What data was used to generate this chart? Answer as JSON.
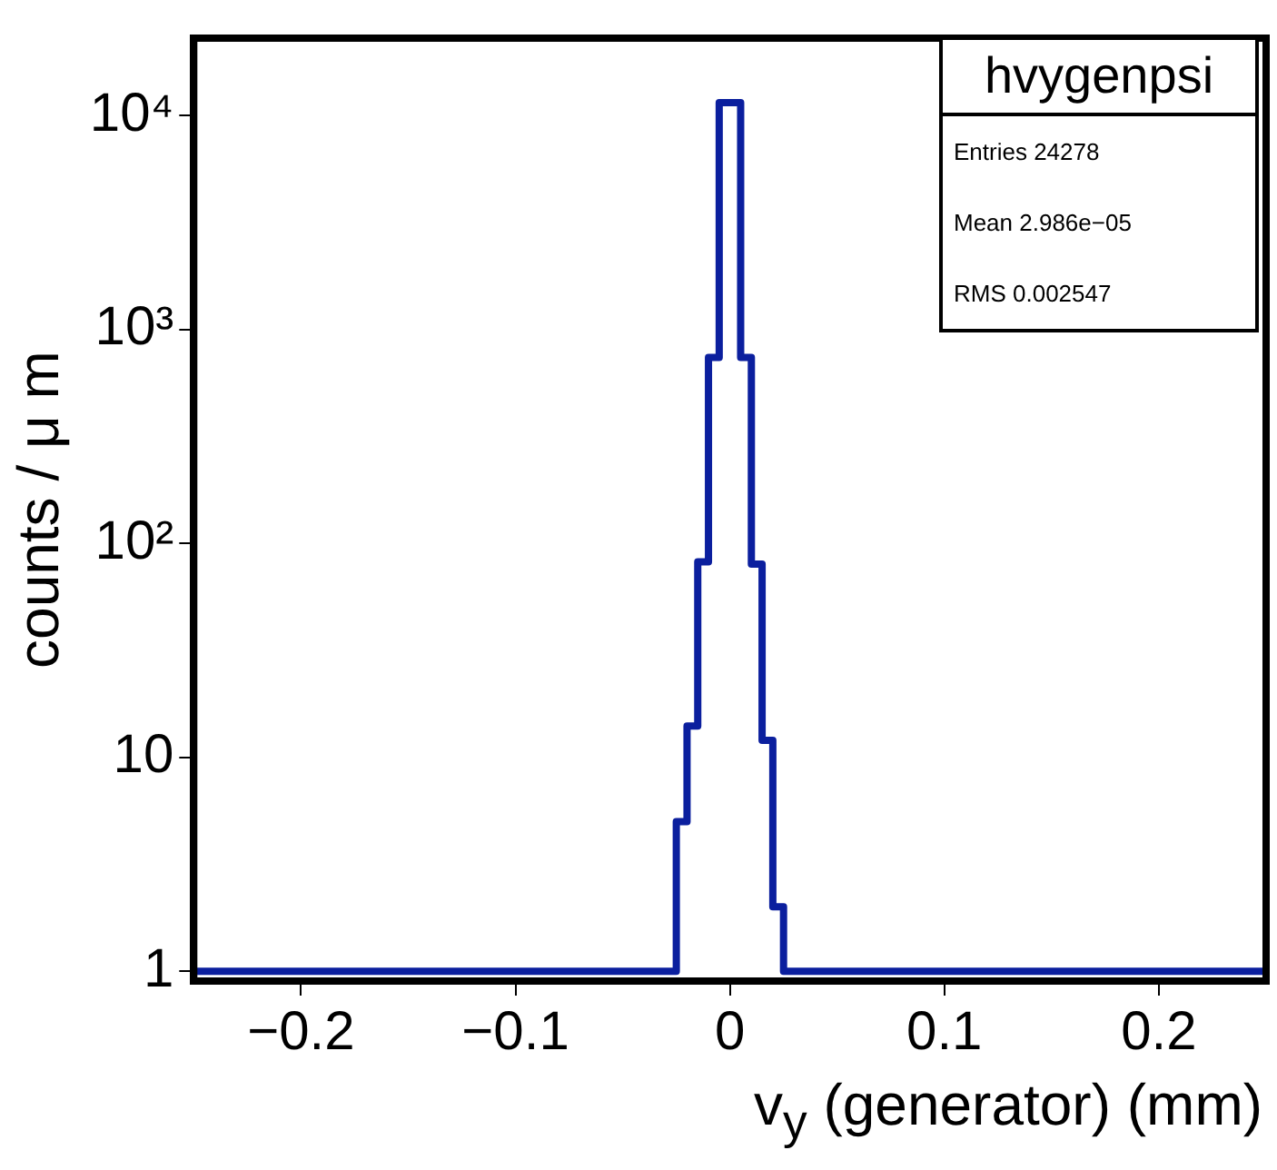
{
  "chart_data": {
    "type": "histogram",
    "xlabel": "v$_{y}$ (generator) (mm)",
    "ylabel": "counts / μ m",
    "bins": [
      -0.25,
      -0.025,
      -0.02,
      -0.015,
      -0.01,
      -0.005,
      0,
      0.005,
      0.01,
      0.015,
      0.02,
      0.025,
      0.25
    ],
    "values": [
      1,
      5,
      14,
      82,
      740,
      11500,
      11500,
      740,
      80,
      12,
      2,
      1
    ],
    "color": "#0b1f9e",
    "xlim": [
      -0.25,
      0.25
    ],
    "xticks": [
      {
        "value": -0.2,
        "label": "−0.2"
      },
      {
        "value": -0.1,
        "label": "−0.1"
      },
      0,
      0.1,
      0.2
    ],
    "ylim": [
      0.9,
      23000
    ],
    "yticks": [
      1,
      10,
      {
        "value": 100,
        "label": "10²"
      },
      {
        "value": 1000,
        "label": "10³"
      },
      {
        "value": 10000,
        "label": "10⁴"
      }
    ],
    "log": "y",
    "grid": false,
    "legend": false,
    "annotations": [
      "hvygenpsi",
      "Entries 24278",
      "Mean 2.986e−05",
      "RMS 0.002547"
    ]
  }
}
